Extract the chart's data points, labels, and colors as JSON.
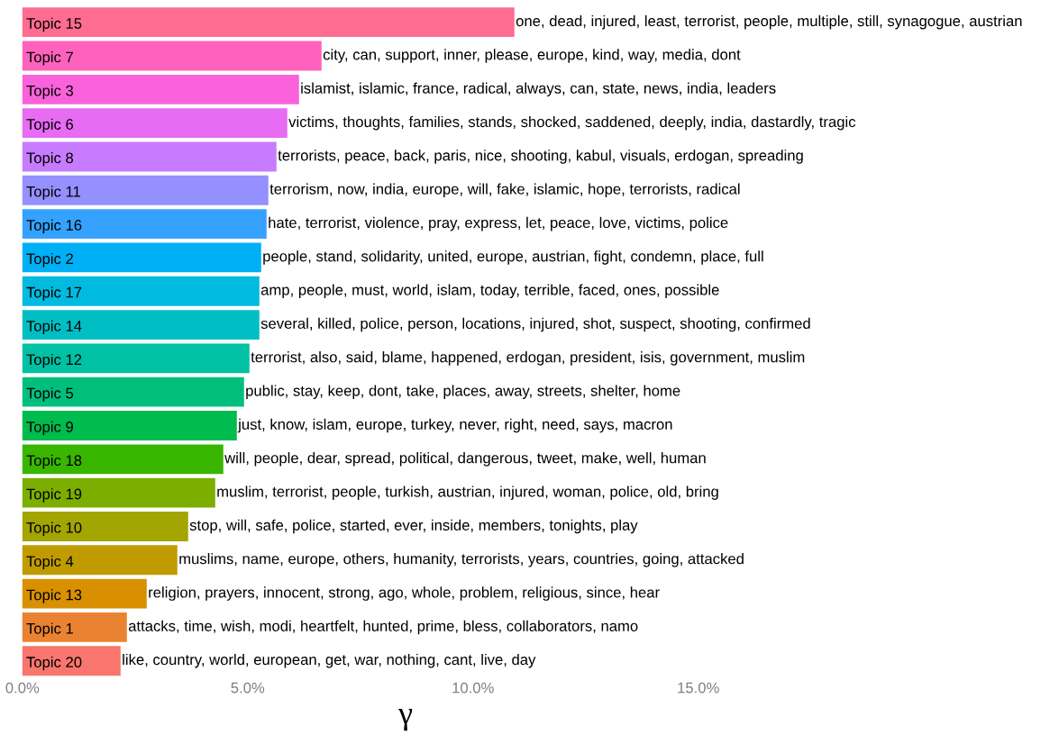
{
  "chart_data": {
    "type": "bar",
    "orientation": "horizontal",
    "xlabel": "γ",
    "categories": [
      "Topic 15",
      "Topic 7",
      "Topic 3",
      "Topic 6",
      "Topic 8",
      "Topic 11",
      "Topic 16",
      "Topic 2",
      "Topic 17",
      "Topic 14",
      "Topic 12",
      "Topic 5",
      "Topic 9",
      "Topic 18",
      "Topic 19",
      "Topic 10",
      "Topic 4",
      "Topic 13",
      "Topic 1",
      "Topic 20"
    ],
    "values": [
      10.92,
      6.64,
      6.14,
      5.88,
      5.64,
      5.46,
      5.42,
      5.3,
      5.26,
      5.26,
      5.04,
      4.92,
      4.76,
      4.46,
      4.28,
      3.68,
      3.44,
      2.76,
      2.32,
      2.18
    ],
    "colors": [
      "#ff6c91",
      "#ff62bc",
      "#fa62db",
      "#e76bf3",
      "#c77cff",
      "#9590ff",
      "#35a2ff",
      "#00b0f6",
      "#00bae0",
      "#00bfc4",
      "#00c1a3",
      "#00bf7d",
      "#00bb4e",
      "#39b600",
      "#7cae00",
      "#a3a500",
      "#c09b00",
      "#d89000",
      "#ea8331",
      "#f8766d"
    ],
    "xlim": [
      -0.1,
      15
    ],
    "xticks": [
      {
        "value": 0,
        "label": "0.0%"
      },
      {
        "value": 5,
        "label": "5.0%"
      },
      {
        "value": 10,
        "label": "10.0%"
      },
      {
        "value": 15,
        "label": "15.0%"
      }
    ],
    "tick_labels": "x",
    "grid": false,
    "legend": false,
    "annotations": [
      {
        "text": "one, dead, injured, least, terrorist, people, multiple, still, synagogue, austrian",
        "x": 10.92,
        "y": "Topic 15"
      },
      {
        "text": "city, can, support, inner, please, europe, kind, way, media, dont",
        "x": 6.64,
        "y": "Topic 7"
      },
      {
        "text": "islamist, islamic, france, radical, always, can, state, news, india, leaders",
        "x": 6.14,
        "y": "Topic 3"
      },
      {
        "text": "victims, thoughts, families, stands, shocked, saddened, deeply, india, dastardly, tragic",
        "x": 5.88,
        "y": "Topic 6"
      },
      {
        "text": "terrorists, peace, back, paris, nice, shooting, kabul, visuals, erdogan, spreading",
        "x": 5.64,
        "y": "Topic 8"
      },
      {
        "text": "terrorism, now, india, europe, will, fake, islamic, hope, terrorists, radical",
        "x": 5.46,
        "y": "Topic 11"
      },
      {
        "text": "hate, terrorist, violence, pray, express, let, peace, love, victims, police",
        "x": 5.42,
        "y": "Topic 16"
      },
      {
        "text": "people, stand, solidarity, united, europe, austrian, fight, condemn, place, full",
        "x": 5.3,
        "y": "Topic 2"
      },
      {
        "text": "amp, people, must, world, islam, today, terrible, faced, ones, possible",
        "x": 5.26,
        "y": "Topic 17"
      },
      {
        "text": "several, killed, police, person, locations, injured, shot, suspect, shooting, confirmed",
        "x": 5.26,
        "y": "Topic 14"
      },
      {
        "text": "terrorist, also, said, blame, happened, erdogan, president, isis, government, muslim",
        "x": 5.04,
        "y": "Topic 12"
      },
      {
        "text": "public, stay, keep, dont, take, places, away, streets, shelter, home",
        "x": 4.92,
        "y": "Topic 5"
      },
      {
        "text": "just, know, islam, europe, turkey, never, right, need, says, macron",
        "x": 4.76,
        "y": "Topic 9"
      },
      {
        "text": "will, people, dear, spread, political, dangerous, tweet, make, well, human",
        "x": 4.46,
        "y": "Topic 18"
      },
      {
        "text": "muslim, terrorist, people, turkish, austrian, injured, woman, police, old, bring",
        "x": 4.28,
        "y": "Topic 19"
      },
      {
        "text": "stop, will, safe, police, started, ever, inside, members, tonights, play",
        "x": 3.68,
        "y": "Topic 10"
      },
      {
        "text": "muslims, name, europe, others, humanity, terrorists, years, countries, going, attacked",
        "x": 3.44,
        "y": "Topic 4"
      },
      {
        "text": "religion, prayers, innocent, strong, ago, whole, problem, religious, since, hear",
        "x": 2.76,
        "y": "Topic 13"
      },
      {
        "text": "attacks, time, wish, modi, heartfelt, hunted, prime, bless, collaborators, namo",
        "x": 2.32,
        "y": "Topic 1"
      },
      {
        "text": "like, country, world, european, get, war, nothing, cant, live, day",
        "x": 2.18,
        "y": "Topic 20"
      }
    ]
  }
}
